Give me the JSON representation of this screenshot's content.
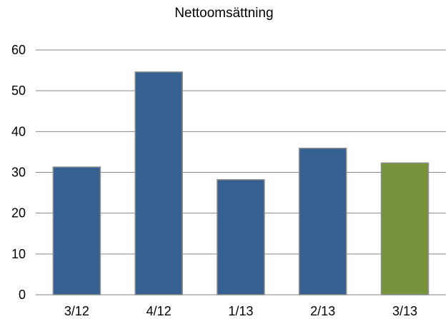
{
  "chart_data": {
    "type": "bar",
    "title": "Nettoomsättning",
    "categories": [
      "3/12",
      "4/12",
      "1/13",
      "2/13",
      "3/13"
    ],
    "values": [
      31.3,
      54.6,
      28.2,
      35.9,
      32.3
    ],
    "bar_colors": [
      "#366092",
      "#366092",
      "#366092",
      "#366092",
      "#77933c"
    ],
    "ylim": [
      0,
      60
    ],
    "yticks": [
      0,
      10,
      20,
      30,
      40,
      50,
      60
    ],
    "grid": true,
    "legend": "none",
    "xlabel": "",
    "ylabel": ""
  }
}
